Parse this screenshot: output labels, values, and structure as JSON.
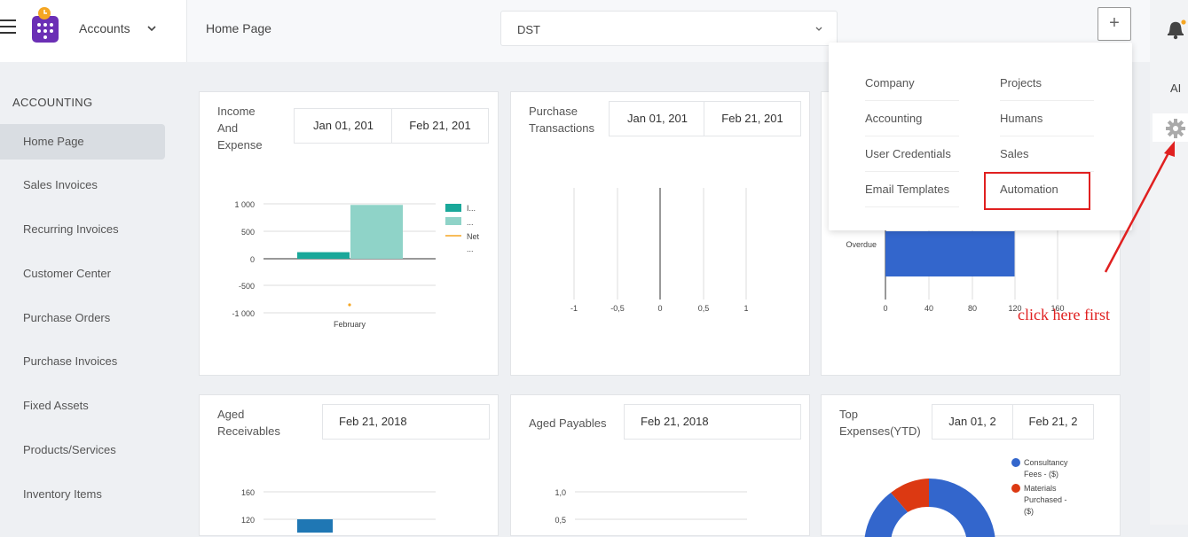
{
  "header": {
    "app_name": "Accounts",
    "page_title": "Home Page",
    "company_select": "DST",
    "plus_label": "+"
  },
  "right_panel": {
    "ai_label": "AI"
  },
  "sidebar": {
    "section": "ACCOUNTING",
    "items": [
      {
        "label": "Home Page",
        "active": true
      },
      {
        "label": "Sales Invoices"
      },
      {
        "label": "Recurring Invoices"
      },
      {
        "label": "Customer Center"
      },
      {
        "label": "Purchase Orders"
      },
      {
        "label": "Purchase Invoices"
      },
      {
        "label": "Fixed Assets"
      },
      {
        "label": "Products/Services"
      },
      {
        "label": "Inventory Items"
      }
    ]
  },
  "dropdown": {
    "items": [
      "Company",
      "Projects",
      "Accounting",
      "Humans",
      "User Credentials",
      "Sales",
      "Email Templates",
      "Automation"
    ]
  },
  "annotation": {
    "text": "click here first"
  },
  "cards": {
    "income": {
      "title_lines": [
        "Income",
        "And",
        "Expense"
      ],
      "from": "Jan 01, 201",
      "to": "Feb 21, 201",
      "legend": [
        "I...",
        "...",
        "Net",
        "..."
      ]
    },
    "purchase": {
      "title_lines": [
        "Purchase",
        "Transactions"
      ],
      "from": "Jan 01, 201",
      "to": "Feb 21, 201"
    },
    "overdue": {
      "label": "Overdue"
    },
    "aged_rec": {
      "title_lines": [
        "Aged",
        "Receivables"
      ],
      "date": "Feb 21, 2018"
    },
    "aged_pay": {
      "title": "Aged Payables",
      "date": "Feb 21, 2018"
    },
    "top_exp": {
      "title_lines": [
        "Top",
        "Expenses(YTD)"
      ],
      "from": "Jan 01, 2",
      "to": "Feb 21, 2",
      "legend": [
        [
          "Consultancy",
          "Fees - ($)"
        ],
        [
          "Materials",
          "Purchased -",
          "($)"
        ]
      ]
    }
  },
  "chart_data": [
    {
      "type": "bar",
      "categories": [
        "February"
      ],
      "series": [
        {
          "values": [
            120
          ]
        },
        {
          "values": [
            980
          ]
        }
      ],
      "yticks": [
        "1 000",
        "500",
        "0",
        "-500",
        "-1 000"
      ],
      "ylim": [
        -1000,
        1000
      ]
    },
    {
      "type": "bar",
      "categories": [],
      "xticks": [
        "-1",
        "-0,5",
        "0",
        "0,5",
        "1"
      ],
      "xlim": [
        -1,
        1
      ]
    },
    {
      "type": "bar",
      "categories": [
        "Overdue"
      ],
      "values": [
        120
      ],
      "xticks": [
        "0",
        "40",
        "80",
        "120",
        "160"
      ],
      "xlim": [
        0,
        160
      ],
      "orientation": "horizontal"
    },
    {
      "type": "bar",
      "yticks": [
        "160",
        "120"
      ],
      "values": [
        120
      ]
    },
    {
      "type": "bar",
      "yticks": [
        "1,0",
        "0,5"
      ]
    },
    {
      "type": "pie",
      "colors": [
        "#3366cc",
        "#dc3912"
      ]
    }
  ],
  "colors": {
    "teal": "#1aa89a",
    "mint": "#8fd3c8",
    "blue": "#3366cc",
    "red": "#dc3912",
    "orange": "#f5a623",
    "annot": "#e02020"
  }
}
